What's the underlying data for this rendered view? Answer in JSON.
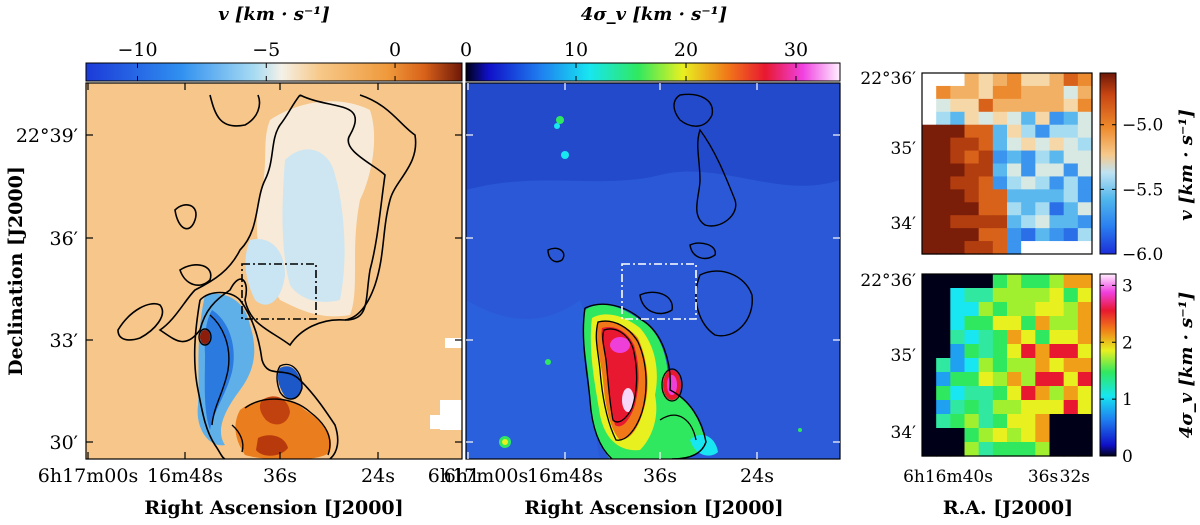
{
  "chart_data": [
    {
      "type": "heatmap",
      "panel": "left",
      "quantity": "line-of-sight velocity",
      "colorbar_label": "v [km · s⁻¹]",
      "colorbar_position": "top",
      "colormap": "blue-white-orange-brown (diverging)",
      "crange": [
        -12,
        2.6
      ],
      "colorbar_ticks": [
        -10,
        -5,
        0
      ],
      "colorbar_tick_labels": [
        "−10",
        "−5",
        "0"
      ],
      "xlabel": "Right Ascension [J2000]",
      "ylabel": "Declination [J2000]",
      "x_tick_labels": [
        "6h17m00s",
        "16m48s",
        "36s",
        "24s",
        "6h1"
      ],
      "y_tick_labels": [
        "22°39′",
        "36′",
        "33′",
        "30′"
      ],
      "background_value_km_s": -3.5,
      "features": [
        {
          "name": "blue plume",
          "value_km_s": -10
        },
        {
          "name": "orange knot",
          "value_km_s": 0
        },
        {
          "name": "dark red knot",
          "value_km_s": 1
        }
      ],
      "inset_box": "dash-dot rectangle marking zoom region"
    },
    {
      "type": "heatmap",
      "panel": "middle",
      "quantity": "velocity dispersion",
      "colorbar_label": "4σ_v [km · s⁻¹]",
      "colorbar_position": "top",
      "colormap": "jet-like (blue-cyan-green-yellow-red-magenta-white)",
      "crange": [
        0,
        34
      ],
      "colorbar_ticks": [
        0,
        10,
        20,
        30
      ],
      "colorbar_tick_labels": [
        "0",
        "10",
        "20",
        "30"
      ],
      "xlabel": "Right Ascension [J2000]",
      "x_tick_labels": [
        "6h17m00s",
        "16m48s",
        "36s",
        "24s"
      ],
      "background_value_km_s": 4,
      "inset_box": "dash-dot rectangle marking zoom region"
    },
    {
      "type": "heatmap",
      "panel": "top-right zoom",
      "quantity": "line-of-sight velocity",
      "colorbar_label": "v [km · s⁻¹]",
      "colorbar_position": "right",
      "crange": [
        -6.0,
        -4.6
      ],
      "colorbar_ticks": [
        -5.0,
        -5.5,
        -6.0
      ],
      "colorbar_tick_labels": [
        "−5.0",
        "−5.5",
        "−6.0"
      ],
      "y_tick_labels": [
        "22°36′",
        "35′",
        "34′"
      ]
    },
    {
      "type": "heatmap",
      "panel": "bottom-right zoom",
      "quantity": "velocity dispersion",
      "colorbar_label": "4σ_v [km · s⁻¹]",
      "colorbar_position": "right",
      "crange": [
        0,
        3.2
      ],
      "colorbar_ticks": [
        0,
        1,
        2,
        3
      ],
      "colorbar_tick_labels": [
        "0",
        "1",
        "2",
        "3"
      ],
      "xlabel": "R.A. [J2000]",
      "x_tick_labels": [
        "6h16m40s",
        "36s",
        "32s"
      ],
      "y_tick_labels": [
        "22°36′",
        "35′",
        "34′"
      ]
    }
  ],
  "text": {
    "left_cb_label": "v [km · s⁻¹]",
    "mid_cb_label": "4σ_v [km · s⁻¹]",
    "tr_cb_label": "v [km · s⁻¹]",
    "br_cb_label": "4σ_v [km · s⁻¹]",
    "left_xlabel": "Right Ascension [J2000]",
    "mid_xlabel": "Right Ascension [J2000]",
    "right_xlabel": "R.A. [J2000]",
    "ylabel": "Declination [J2000]",
    "left_cb_ticks": [
      "−10",
      "−5",
      "0"
    ],
    "mid_cb_ticks": [
      "0",
      "10",
      "20",
      "30"
    ],
    "tr_cb_ticks": [
      "−5.0",
      "−5.5",
      "−6.0"
    ],
    "br_cb_ticks": [
      "3",
      "2",
      "1",
      "0"
    ],
    "left_y_ticks": [
      "22°39′",
      "36′",
      "33′",
      "30′"
    ],
    "right_top_y_ticks": [
      "22°36′",
      "35′",
      "34′"
    ],
    "right_bot_y_ticks": [
      "22°36′",
      "35′",
      "34′"
    ],
    "left_x_ticks": [
      "6h17m00s",
      "16m48s",
      "36s",
      "24s",
      "6h1"
    ],
    "mid_x_ticks": [
      "6h17m00s",
      "16m48s",
      "36s",
      "24s"
    ],
    "right_x_ticks": [
      "6h16m40s",
      "36s",
      "32s"
    ]
  },
  "colors": {
    "vel_bg": "#f6c68a",
    "vel_blue": "#1e6fe0",
    "vel_cyan": "#9fd6f0",
    "vel_orange": "#ea7d1d",
    "vel_red": "#8c1d0a",
    "disp_bg": "#2a58d6",
    "disp_red": "#e8202a",
    "disp_yellow": "#f2e61a",
    "disp_magenta": "#ee40d8"
  }
}
